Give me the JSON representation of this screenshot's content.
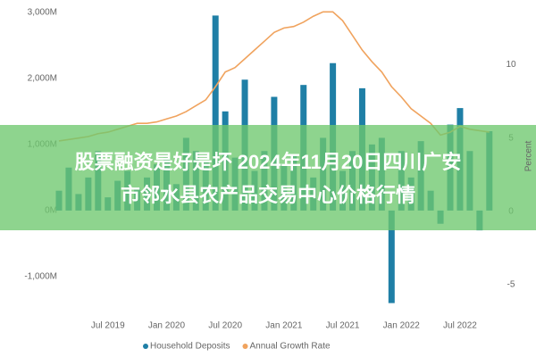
{
  "chart_data": {
    "type": "bar",
    "categories": [
      null,
      null,
      null,
      null,
      null,
      "Jul 2019",
      null,
      null,
      null,
      null,
      null,
      "Jan 2020",
      null,
      null,
      null,
      null,
      null,
      "Jul 2020",
      null,
      null,
      null,
      null,
      null,
      "Jan 2021",
      null,
      null,
      null,
      null,
      null,
      "Jul 2021",
      null,
      null,
      null,
      null,
      null,
      "Jan 2022",
      null,
      null,
      null,
      null,
      null,
      "Jul 2022",
      null,
      null,
      null
    ],
    "series": [
      {
        "name": "Household Deposits",
        "color": "#1f7fa6",
        "type": "bar",
        "values": [
          300,
          650,
          250,
          500,
          900,
          200,
          450,
          600,
          350,
          500,
          700,
          800,
          400,
          1100,
          900,
          750,
          2950,
          1500,
          800,
          1980,
          600,
          900,
          1720,
          700,
          850,
          1900,
          500,
          1100,
          2230,
          600,
          900,
          1850,
          1000,
          1100,
          -1400,
          900,
          500,
          1050,
          300,
          -200,
          1300,
          1550,
          900,
          -300,
          1200
        ]
      },
      {
        "name": "Annual Growth Rate",
        "color": "#f0a35e",
        "type": "line",
        "axis": "y2",
        "values": [
          4.8,
          4.9,
          5.0,
          5.1,
          5.3,
          5.4,
          5.6,
          5.8,
          6.0,
          6.0,
          6.1,
          6.3,
          6.5,
          6.8,
          7.2,
          7.6,
          8.5,
          9.5,
          9.8,
          10.4,
          11.0,
          11.6,
          12.2,
          12.5,
          12.6,
          12.9,
          13.3,
          13.6,
          13.6,
          13.0,
          12.0,
          11.0,
          10.2,
          9.5,
          8.5,
          7.8,
          7.0,
          6.5,
          6.0,
          5.2,
          5.4,
          5.8,
          5.6,
          5.5,
          5.4
        ]
      }
    ],
    "ylim": [
      -1500,
      3050
    ],
    "yticks": [
      {
        "value": 3000,
        "label": "3,000M"
      },
      {
        "value": 2000,
        "label": "2,000M"
      },
      {
        "value": 1000,
        "label": "1,000M"
      },
      {
        "value": 0,
        "label": "0M"
      },
      {
        "value": -1000,
        "label": "-1,000M"
      }
    ],
    "y2lim": [
      -6.7,
      13.8
    ],
    "y2ticks": [
      -5,
      0,
      5,
      10
    ],
    "y2label": "Percent",
    "grid": false
  },
  "banner": {
    "lines": [
      "股票融资是好是坏 2024年11月20日四川广安",
      "市邻水县农产品交易中心价格行情"
    ]
  }
}
